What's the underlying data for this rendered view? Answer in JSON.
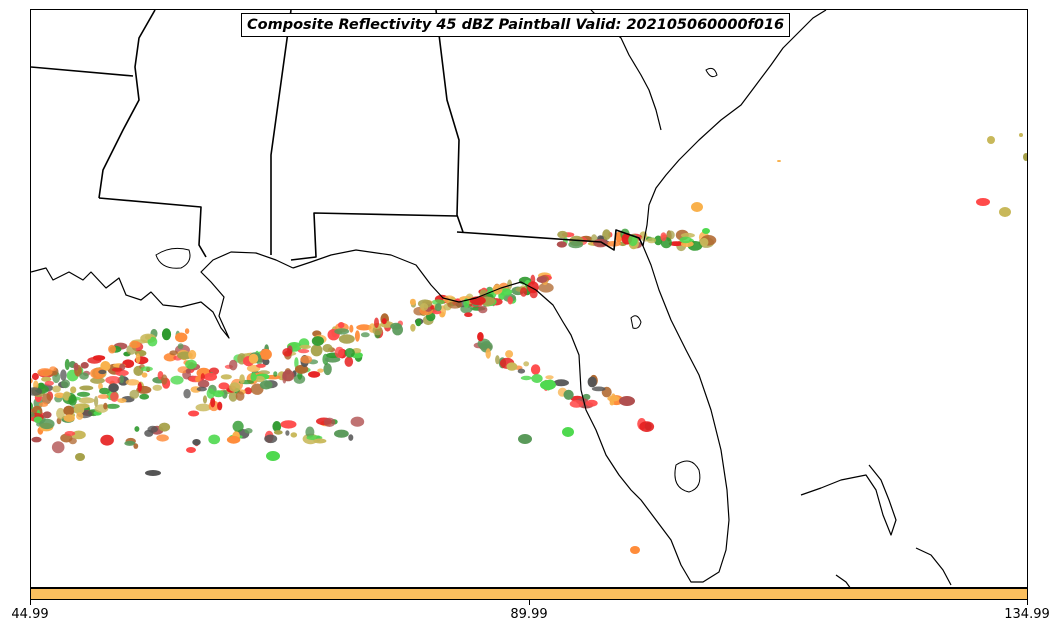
{
  "title": "Composite Reflectivity 45 dBZ Paintball Valid: 202105060000f016",
  "colorbar": {
    "color": "#fbbf5e",
    "ticks": [
      "44.99",
      "89.99",
      "134.99"
    ]
  },
  "paintball_palette": [
    "#ff4a4a",
    "#e62020",
    "#ff8c3a",
    "#f9b14c",
    "#b0682f",
    "#b05050",
    "#4fd94f",
    "#2f9a2f",
    "#5a9a5a",
    "#a6a14a",
    "#c8b85a",
    "#555555"
  ]
}
